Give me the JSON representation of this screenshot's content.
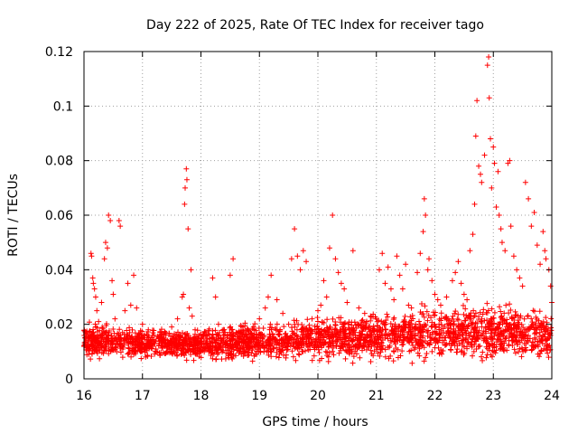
{
  "chart_data": {
    "type": "scatter",
    "title": "Day 222 of 2025, Rate Of TEC Index for receiver tago",
    "xlabel": "GPS time / hours",
    "ylabel": "ROTI / TECUs",
    "xlim": [
      16,
      24
    ],
    "ylim": [
      0,
      0.12
    ],
    "x_ticks": [
      16,
      17,
      18,
      19,
      20,
      21,
      22,
      23,
      24
    ],
    "x_tick_labels": [
      "16",
      "17",
      "18",
      "19",
      "20",
      "21",
      "22",
      "23",
      "24"
    ],
    "y_ticks": [
      0,
      0.02,
      0.04,
      0.06,
      0.08,
      0.1,
      0.12
    ],
    "y_tick_labels": [
      "0",
      "0.02",
      "0.04",
      "0.06",
      "0.08",
      "0.1",
      "0.12"
    ],
    "grid": true,
    "marker": "+",
    "marker_color": "#ff0000",
    "series": [
      {
        "name": "ROTI",
        "color": "#ff0000",
        "points": [
          [
            16.05,
            0.012
          ],
          [
            16.08,
            0.009
          ],
          [
            16.1,
            0.015
          ],
          [
            16.12,
            0.046
          ],
          [
            16.13,
            0.045
          ],
          [
            16.15,
            0.037
          ],
          [
            16.16,
            0.035
          ],
          [
            16.18,
            0.033
          ],
          [
            16.2,
            0.03
          ],
          [
            16.22,
            0.025
          ],
          [
            16.25,
            0.021
          ],
          [
            16.3,
            0.028
          ],
          [
            16.35,
            0.044
          ],
          [
            16.37,
            0.05
          ],
          [
            16.4,
            0.048
          ],
          [
            16.42,
            0.06
          ],
          [
            16.45,
            0.058
          ],
          [
            16.48,
            0.036
          ],
          [
            16.5,
            0.031
          ],
          [
            16.53,
            0.022
          ],
          [
            16.6,
            0.058
          ],
          [
            16.62,
            0.056
          ],
          [
            16.7,
            0.025
          ],
          [
            16.75,
            0.035
          ],
          [
            16.8,
            0.027
          ],
          [
            16.85,
            0.038
          ],
          [
            16.9,
            0.026
          ],
          [
            17.0,
            0.02
          ],
          [
            17.1,
            0.018
          ],
          [
            17.2,
            0.016
          ],
          [
            17.3,
            0.017
          ],
          [
            17.4,
            0.016
          ],
          [
            17.5,
            0.019
          ],
          [
            17.6,
            0.022
          ],
          [
            17.68,
            0.03
          ],
          [
            17.7,
            0.031
          ],
          [
            17.72,
            0.064
          ],
          [
            17.73,
            0.07
          ],
          [
            17.75,
            0.077
          ],
          [
            17.76,
            0.073
          ],
          [
            17.78,
            0.055
          ],
          [
            17.8,
            0.026
          ],
          [
            17.83,
            0.04
          ],
          [
            17.85,
            0.023
          ],
          [
            17.9,
            0.018
          ],
          [
            18.0,
            0.015
          ],
          [
            18.1,
            0.016
          ],
          [
            18.2,
            0.037
          ],
          [
            18.25,
            0.03
          ],
          [
            18.3,
            0.02
          ],
          [
            18.4,
            0.018
          ],
          [
            18.5,
            0.038
          ],
          [
            18.55,
            0.044
          ],
          [
            18.6,
            0.017
          ],
          [
            18.7,
            0.016
          ],
          [
            18.8,
            0.018
          ],
          [
            18.9,
            0.019
          ],
          [
            19.0,
            0.022
          ],
          [
            19.1,
            0.026
          ],
          [
            19.15,
            0.03
          ],
          [
            19.2,
            0.038
          ],
          [
            19.3,
            0.029
          ],
          [
            19.4,
            0.024
          ],
          [
            19.5,
            0.02
          ],
          [
            19.55,
            0.044
          ],
          [
            19.6,
            0.055
          ],
          [
            19.65,
            0.045
          ],
          [
            19.7,
            0.04
          ],
          [
            19.75,
            0.047
          ],
          [
            19.8,
            0.043
          ],
          [
            19.9,
            0.022
          ],
          [
            20.0,
            0.025
          ],
          [
            20.05,
            0.027
          ],
          [
            20.1,
            0.036
          ],
          [
            20.15,
            0.03
          ],
          [
            20.2,
            0.048
          ],
          [
            20.25,
            0.06
          ],
          [
            20.3,
            0.044
          ],
          [
            20.35,
            0.039
          ],
          [
            20.4,
            0.035
          ],
          [
            20.45,
            0.033
          ],
          [
            20.5,
            0.028
          ],
          [
            20.6,
            0.047
          ],
          [
            20.7,
            0.026
          ],
          [
            20.8,
            0.024
          ],
          [
            20.9,
            0.023
          ],
          [
            21.0,
            0.022
          ],
          [
            21.05,
            0.04
          ],
          [
            21.1,
            0.046
          ],
          [
            21.15,
            0.035
          ],
          [
            21.2,
            0.041
          ],
          [
            21.25,
            0.033
          ],
          [
            21.3,
            0.029
          ],
          [
            21.35,
            0.045
          ],
          [
            21.4,
            0.038
          ],
          [
            21.45,
            0.033
          ],
          [
            21.5,
            0.042
          ],
          [
            21.55,
            0.027
          ],
          [
            21.6,
            0.026
          ],
          [
            21.7,
            0.039
          ],
          [
            21.75,
            0.046
          ],
          [
            21.8,
            0.054
          ],
          [
            21.82,
            0.066
          ],
          [
            21.84,
            0.06
          ],
          [
            21.88,
            0.04
          ],
          [
            21.9,
            0.044
          ],
          [
            21.95,
            0.036
          ],
          [
            22.0,
            0.031
          ],
          [
            22.05,
            0.029
          ],
          [
            22.1,
            0.027
          ],
          [
            22.2,
            0.03
          ],
          [
            22.3,
            0.036
          ],
          [
            22.35,
            0.039
          ],
          [
            22.4,
            0.043
          ],
          [
            22.45,
            0.035
          ],
          [
            22.5,
            0.031
          ],
          [
            22.55,
            0.029
          ],
          [
            22.6,
            0.047
          ],
          [
            22.65,
            0.053
          ],
          [
            22.68,
            0.064
          ],
          [
            22.7,
            0.089
          ],
          [
            22.72,
            0.102
          ],
          [
            22.75,
            0.078
          ],
          [
            22.78,
            0.075
          ],
          [
            22.8,
            0.072
          ],
          [
            22.85,
            0.082
          ],
          [
            22.9,
            0.115
          ],
          [
            22.92,
            0.118
          ],
          [
            22.93,
            0.103
          ],
          [
            22.95,
            0.088
          ],
          [
            22.97,
            0.07
          ],
          [
            23.0,
            0.085
          ],
          [
            23.02,
            0.079
          ],
          [
            23.05,
            0.063
          ],
          [
            23.08,
            0.076
          ],
          [
            23.1,
            0.06
          ],
          [
            23.13,
            0.055
          ],
          [
            23.15,
            0.05
          ],
          [
            23.2,
            0.047
          ],
          [
            23.25,
            0.079
          ],
          [
            23.28,
            0.08
          ],
          [
            23.3,
            0.056
          ],
          [
            23.35,
            0.045
          ],
          [
            23.4,
            0.04
          ],
          [
            23.45,
            0.037
          ],
          [
            23.5,
            0.034
          ],
          [
            23.55,
            0.072
          ],
          [
            23.6,
            0.066
          ],
          [
            23.65,
            0.056
          ],
          [
            23.7,
            0.061
          ],
          [
            23.75,
            0.049
          ],
          [
            23.8,
            0.042
          ],
          [
            23.85,
            0.054
          ],
          [
            23.88,
            0.047
          ],
          [
            23.9,
            0.044
          ],
          [
            23.95,
            0.04
          ],
          [
            23.98,
            0.034
          ],
          [
            24.0,
            0.028
          ]
        ]
      }
    ],
    "dense_band": {
      "description": "dense background cloud of points between roughly 0.005 and 0.03 across the whole range",
      "x_range": [
        16.0,
        24.0
      ],
      "y_profile_hours": [
        16,
        17,
        18,
        19,
        20,
        21,
        22,
        23,
        24
      ],
      "y_low": [
        0.006,
        0.006,
        0.005,
        0.005,
        0.005,
        0.005,
        0.005,
        0.005,
        0.005
      ],
      "y_high": [
        0.022,
        0.02,
        0.02,
        0.022,
        0.024,
        0.026,
        0.03,
        0.03,
        0.026
      ],
      "count": 2600,
      "seed": 22225
    }
  }
}
